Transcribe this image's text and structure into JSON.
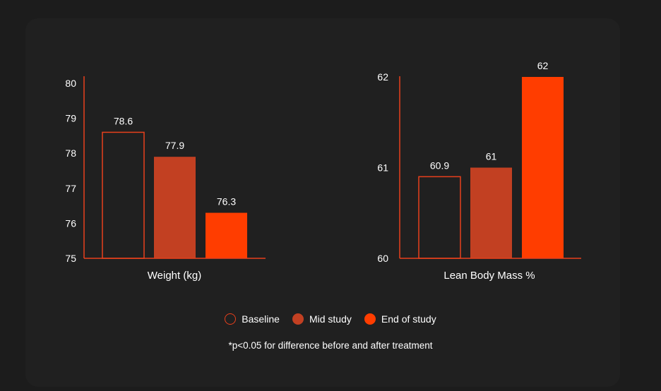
{
  "chart_data": [
    {
      "type": "bar",
      "xlabel": "Weight (kg)",
      "categories": [
        "Baseline",
        "Mid study",
        "End of study"
      ],
      "values": [
        78.6,
        77.9,
        76.3
      ],
      "ylim": [
        75,
        80
      ],
      "yticks": [
        75,
        76,
        77,
        78,
        79,
        80
      ]
    },
    {
      "type": "bar",
      "xlabel": "Lean Body Mass %",
      "categories": [
        "Baseline",
        "Mid study",
        "End of study"
      ],
      "values": [
        60.9,
        61,
        62
      ],
      "value_labels": [
        "60.9",
        "61",
        "62"
      ],
      "ylim": [
        60,
        62
      ],
      "yticks": [
        60,
        61,
        62
      ]
    }
  ],
  "legend": [
    {
      "label": "Baseline",
      "style": "outline",
      "color": "#e8401c"
    },
    {
      "label": "Mid study",
      "style": "filled",
      "color": "#c24022"
    },
    {
      "label": "End of study",
      "style": "filled",
      "color": "#ff3d00"
    }
  ],
  "footnote": "*p<0.05 for difference before and after treatment",
  "colors": {
    "axis": "#e8401c",
    "baseline_outline": "#e8401c",
    "mid": "#c24022",
    "end": "#ff3d00",
    "background": "#202020"
  }
}
